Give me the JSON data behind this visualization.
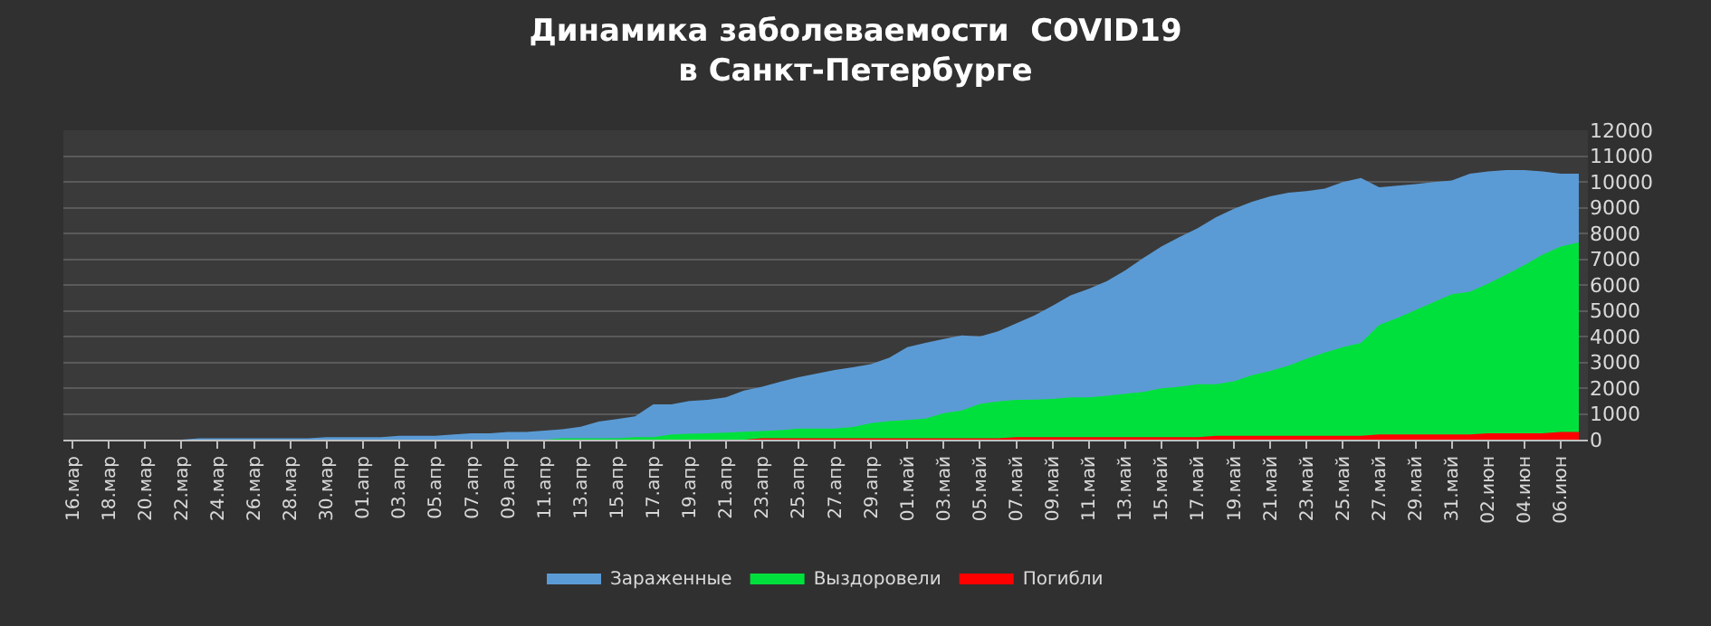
{
  "chart_data": {
    "type": "area",
    "title": "Динамика заболеваемости  COVID19\nв Санкт-Петербурге",
    "categories": [
      "16.мар",
      null,
      "18.мар",
      null,
      "20.мар",
      null,
      "22.мар",
      null,
      "24.мар",
      null,
      "26.мар",
      null,
      "28.мар",
      null,
      "30.мар",
      null,
      "01.апр",
      null,
      "03.апр",
      null,
      "05.апр",
      null,
      "07.апр",
      null,
      "09.апр",
      null,
      "11.апр",
      null,
      "13.апр",
      null,
      "15.апр",
      null,
      "17.апр",
      null,
      "19.апр",
      null,
      "21.апр",
      null,
      "23.апр",
      null,
      "25.апр",
      null,
      "27.апр",
      null,
      "29.апр",
      null,
      "01.май",
      null,
      "03.май",
      null,
      "05.май",
      null,
      "07.май",
      null,
      "09.май",
      null,
      "11.май",
      null,
      "13.май",
      null,
      "15.май",
      null,
      "17.май",
      null,
      "19.май",
      null,
      "21.май",
      null,
      "23.май",
      null,
      "25.май",
      null,
      "27.май",
      null,
      "29.май",
      null,
      "31.май",
      null,
      "02.июн",
      null,
      "04.июн",
      null,
      "06.июн",
      null
    ],
    "series": [
      {
        "name": "Зараженные",
        "color": "#5b9bd5",
        "values": [
          0,
          0,
          0,
          0,
          0,
          0,
          0,
          50,
          50,
          50,
          50,
          50,
          50,
          50,
          100,
          100,
          100,
          100,
          150,
          150,
          150,
          200,
          250,
          250,
          300,
          300,
          350,
          400,
          500,
          700,
          800,
          900,
          1370,
          1370,
          1500,
          1540,
          1640,
          1900,
          2050,
          2250,
          2420,
          2560,
          2700,
          2810,
          2930,
          3180,
          3590,
          3750,
          3900,
          4040,
          4000,
          4200,
          4510,
          4820,
          5190,
          5600,
          5850,
          6150,
          6560,
          7040,
          7490,
          7860,
          8200,
          8620,
          8960,
          9230,
          9440,
          9580,
          9640,
          9740,
          9990,
          10150,
          9790,
          9850,
          9910,
          9990,
          10050,
          10320,
          10400,
          10460,
          10460,
          10400,
          10320,
          10320
        ]
      },
      {
        "name": "Выздоровели",
        "color": "#00e03c",
        "values": [
          0,
          0,
          0,
          0,
          0,
          0,
          0,
          0,
          0,
          0,
          0,
          0,
          0,
          0,
          0,
          0,
          0,
          0,
          0,
          0,
          0,
          0,
          0,
          0,
          0,
          0,
          0,
          50,
          50,
          50,
          50,
          100,
          100,
          200,
          230,
          250,
          270,
          310,
          330,
          370,
          430,
          430,
          430,
          490,
          640,
          720,
          760,
          820,
          1030,
          1130,
          1390,
          1480,
          1540,
          1550,
          1580,
          1640,
          1640,
          1700,
          1780,
          1850,
          1990,
          2050,
          2150,
          2150,
          2260,
          2500,
          2670,
          2870,
          3140,
          3380,
          3590,
          3750,
          4450,
          4720,
          5030,
          5330,
          5640,
          5740,
          6050,
          6400,
          6770,
          7180,
          7490,
          7650
        ]
      },
      {
        "name": "Погибли",
        "color": "#ff0000",
        "values": [
          0,
          0,
          0,
          0,
          0,
          0,
          0,
          0,
          0,
          0,
          0,
          0,
          0,
          0,
          0,
          0,
          0,
          0,
          0,
          0,
          0,
          0,
          0,
          0,
          0,
          0,
          0,
          0,
          0,
          0,
          0,
          0,
          0,
          0,
          0,
          0,
          0,
          0,
          50,
          50,
          50,
          50,
          50,
          50,
          50,
          50,
          50,
          50,
          50,
          50,
          50,
          50,
          100,
          100,
          100,
          100,
          100,
          100,
          100,
          100,
          100,
          100,
          100,
          150,
          150,
          150,
          150,
          150,
          150,
          150,
          150,
          150,
          200,
          200,
          200,
          200,
          200,
          200,
          250,
          250,
          250,
          250,
          300,
          300
        ]
      }
    ],
    "ylim": [
      0,
      12000
    ],
    "yticks": [
      0,
      1000,
      2000,
      3000,
      4000,
      5000,
      6000,
      7000,
      8000,
      9000,
      10000,
      11000,
      12000
    ],
    "grid": "y",
    "legend": "bottom"
  }
}
